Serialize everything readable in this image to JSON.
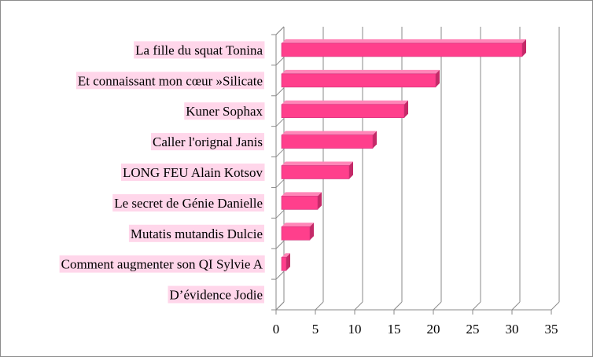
{
  "chart_data": {
    "type": "bar",
    "orientation": "horizontal",
    "style": "3d",
    "categories": [
      "La fille du squat Tonina",
      "Et connaissant mon cœur »Silicate",
      "Kuner Sophax",
      "Caller l'orignal Janis",
      "LONG FEU Alain Kotsov",
      "Le secret de Génie Danielle",
      "Mutatis mutandis Dulcie",
      "Comment augmenter son QI Sylvie A",
      "D’évidence Jodie"
    ],
    "values": [
      31,
      20,
      16,
      12,
      9,
      5,
      4,
      1,
      0
    ],
    "xlim": [
      0,
      35
    ],
    "xticks": [
      "0",
      "5",
      "10",
      "15",
      "20",
      "25",
      "30",
      "35"
    ],
    "grid": "vertical",
    "legend": "none",
    "colors": {
      "bar_front": "#ff3f8c",
      "bar_top": "#ff86b8",
      "bar_side": "#c42a68",
      "label_bg": "#ffd6ea",
      "grid": "#8a8a8a",
      "frame": "#8c8c8c"
    }
  }
}
